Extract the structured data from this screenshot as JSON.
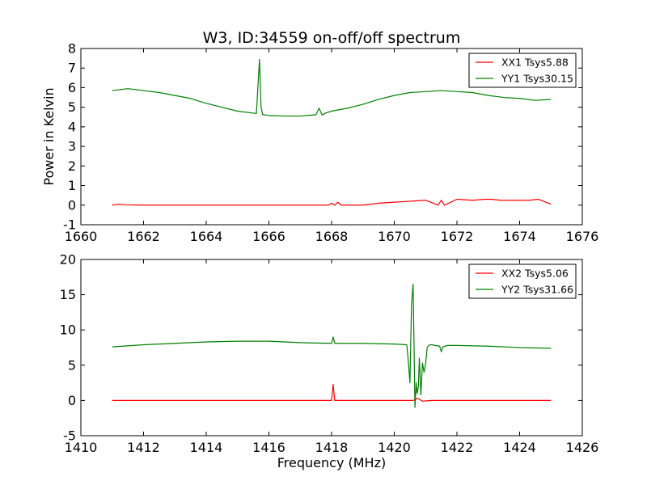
{
  "figure_title": "W3, ID:34559 on-off/off spectrum",
  "chart_data": [
    {
      "type": "line",
      "title": "W3, ID:34559 on-off/off spectrum",
      "xlabel": "",
      "ylabel": "Power in Kelvin",
      "xlim": [
        1660,
        1676
      ],
      "ylim": [
        -1,
        8
      ],
      "xticks": [
        1660,
        1662,
        1664,
        1666,
        1668,
        1670,
        1672,
        1674,
        1676
      ],
      "yticks": [
        -1,
        0,
        1,
        2,
        3,
        4,
        5,
        6,
        7,
        8
      ],
      "grid": false,
      "legend_position": "top-right",
      "series": [
        {
          "name": "XX1 Tsys5.88",
          "color": "#ff0000",
          "x": [
            1661.0,
            1661.2,
            1661.4,
            1662.0,
            1663.0,
            1664.0,
            1665.0,
            1666.0,
            1667.0,
            1667.9,
            1668.0,
            1668.1,
            1668.2,
            1668.3,
            1669.0,
            1669.5,
            1670.0,
            1670.5,
            1671.0,
            1671.4,
            1671.5,
            1671.6,
            1672.0,
            1672.5,
            1672.9,
            1673.1,
            1673.4,
            1673.8,
            1674.3,
            1674.6,
            1675.0
          ],
          "y": [
            0.0,
            0.05,
            0.02,
            0.0,
            0.0,
            0.0,
            0.0,
            0.0,
            0.0,
            0.0,
            0.1,
            0.0,
            0.15,
            0.0,
            0.0,
            0.1,
            0.15,
            0.2,
            0.25,
            0.0,
            0.25,
            0.0,
            0.3,
            0.25,
            0.3,
            0.3,
            0.25,
            0.25,
            0.25,
            0.3,
            0.05
          ]
        },
        {
          "name": "YY1 Tsys30.15",
          "color": "#008000",
          "x": [
            1661.0,
            1661.5,
            1662.0,
            1662.5,
            1663.0,
            1663.5,
            1664.0,
            1664.5,
            1665.0,
            1665.5,
            1665.6,
            1665.7,
            1665.75,
            1665.8,
            1666.0,
            1666.5,
            1667.0,
            1667.5,
            1667.6,
            1667.7,
            1667.8,
            1668.0,
            1668.5,
            1669.0,
            1669.5,
            1670.0,
            1670.5,
            1671.0,
            1671.5,
            1672.0,
            1672.5,
            1673.0,
            1673.5,
            1674.0,
            1674.5,
            1675.0
          ],
          "y": [
            5.85,
            5.95,
            5.85,
            5.75,
            5.6,
            5.45,
            5.2,
            5.0,
            4.8,
            4.7,
            4.68,
            7.45,
            5.0,
            4.62,
            4.58,
            4.55,
            4.55,
            4.62,
            4.95,
            4.6,
            4.7,
            4.8,
            4.95,
            5.15,
            5.4,
            5.6,
            5.75,
            5.8,
            5.85,
            5.8,
            5.75,
            5.6,
            5.5,
            5.45,
            5.35,
            5.4
          ]
        }
      ]
    },
    {
      "type": "line",
      "title": "",
      "xlabel": "Frequency (MHz)",
      "ylabel": "",
      "xlim": [
        1410,
        1426
      ],
      "ylim": [
        -5,
        20
      ],
      "xticks": [
        1410,
        1412,
        1414,
        1416,
        1418,
        1420,
        1422,
        1424,
        1426
      ],
      "yticks": [
        -5,
        0,
        5,
        10,
        15,
        20
      ],
      "grid": false,
      "legend_position": "top-right",
      "series": [
        {
          "name": "XX2 Tsys5.06",
          "color": "#ff0000",
          "x": [
            1411.0,
            1414.0,
            1417.0,
            1418.0,
            1418.05,
            1418.1,
            1420.0,
            1420.6,
            1420.75,
            1420.9,
            1421.2,
            1423.0,
            1425.0
          ],
          "y": [
            0.0,
            0.0,
            0.0,
            0.0,
            2.3,
            0.0,
            0.0,
            0.0,
            0.3,
            -0.1,
            0.0,
            0.0,
            0.0
          ]
        },
        {
          "name": "YY2 Tsys31.66",
          "color": "#008000",
          "x": [
            1411.0,
            1412.0,
            1413.0,
            1414.0,
            1415.0,
            1416.0,
            1417.0,
            1418.0,
            1418.05,
            1418.1,
            1419.0,
            1420.0,
            1420.4,
            1420.45,
            1420.5,
            1420.55,
            1420.6,
            1420.63,
            1420.66,
            1420.7,
            1420.73,
            1420.77,
            1420.8,
            1420.85,
            1420.9,
            1420.95,
            1421.0,
            1421.05,
            1421.1,
            1421.15,
            1421.2,
            1421.3,
            1421.45,
            1421.5,
            1421.55,
            1421.7,
            1422.0,
            1423.0,
            1424.0,
            1425.0
          ],
          "y": [
            7.6,
            7.9,
            8.1,
            8.3,
            8.4,
            8.4,
            8.2,
            8.1,
            9.0,
            8.1,
            8.1,
            8.0,
            7.9,
            5.5,
            2.5,
            13.5,
            16.5,
            8.0,
            -1.0,
            2.5,
            1.0,
            2.0,
            6.0,
            0.8,
            5.3,
            4.0,
            5.2,
            7.5,
            7.8,
            7.9,
            7.9,
            7.8,
            7.7,
            6.9,
            7.6,
            7.8,
            7.8,
            7.7,
            7.5,
            7.4
          ]
        }
      ]
    }
  ]
}
